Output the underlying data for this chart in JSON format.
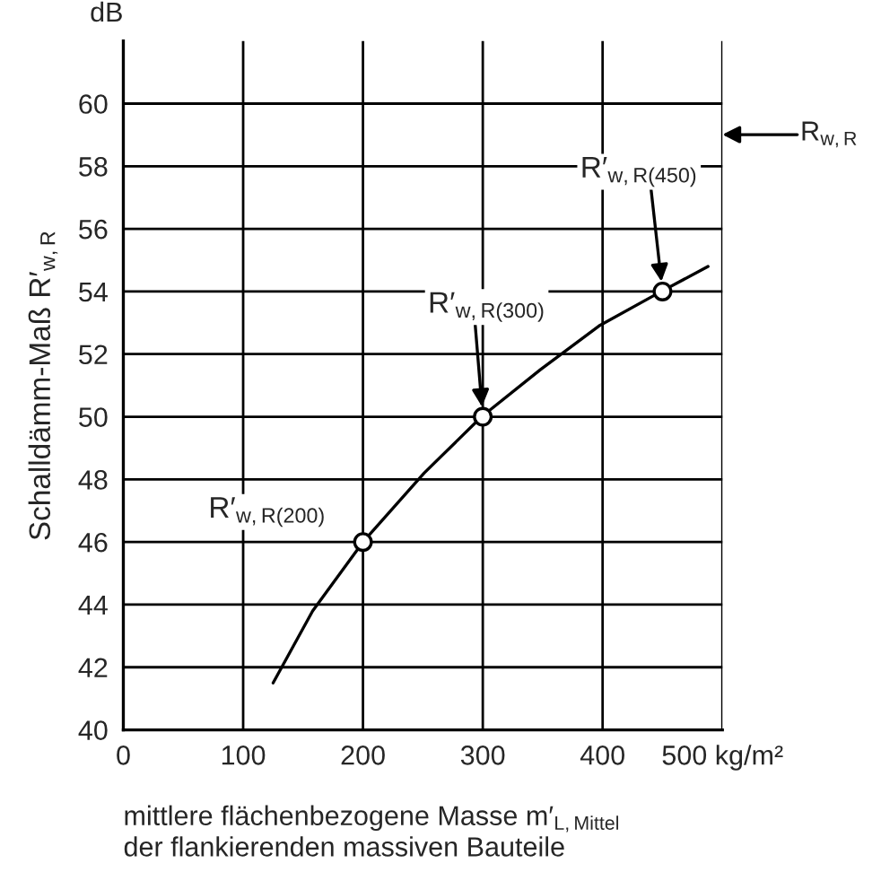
{
  "chart_data": {
    "type": "line",
    "xlabel": "mittlere flächenbezogene Masse m′$_{L,Mittel}$\nder flankierenden massiven Bauteile",
    "ylabel": "Schalldämm-Maß R′$_{w,R}$",
    "series": [
      {
        "color": "#000000",
        "x": [
          125,
          158,
          200,
          251,
          299,
          348,
          397,
          449,
          488
        ],
        "values": [
          41.5,
          43.8,
          46,
          48.2,
          50,
          51.5,
          52.9,
          54,
          54.8
        ]
      },
      {
        "type": "scatter",
        "color": "#000000",
        "marker": "circle",
        "x": [
          200,
          300,
          450
        ],
        "values": [
          46,
          50,
          54
        ]
      }
    ],
    "annotations": [
      "dB",
      {
        "text": "R′$_{w,R(200)}$",
        "x": 200,
        "y": 46
      },
      {
        "text": "R′$_{w,R(300)}$",
        "x": 300,
        "y": 50
      },
      {
        "text": "R′$_{w,R(450)}$",
        "x": 450,
        "y": 54
      },
      "R$_{w,R}$"
    ],
    "xlim": [
      0,
      500
    ],
    "ylim": [
      40,
      62
    ],
    "xticks": [
      0,
      100,
      200,
      300,
      400,
      {
        "value": 500,
        "label": "500 kg/m²"
      }
    ],
    "yticks": [
      40,
      42,
      44,
      46,
      48,
      50,
      52,
      54,
      56,
      58,
      60
    ],
    "grid": true
  }
}
